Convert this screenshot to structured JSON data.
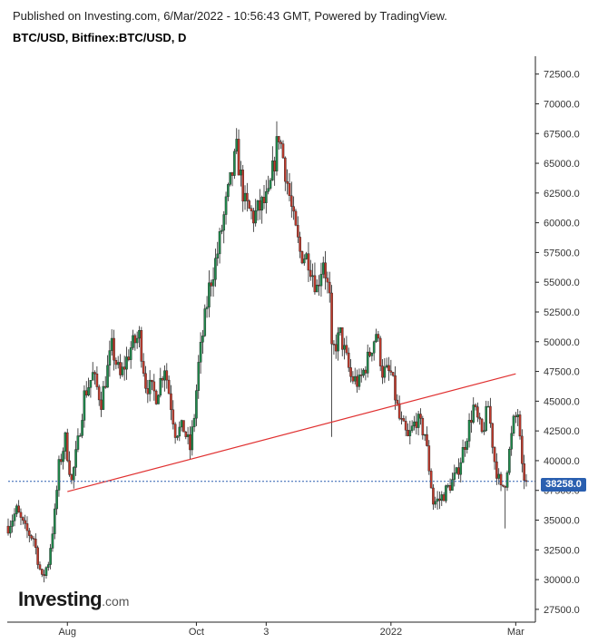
{
  "header": {
    "published": "Published on Investing.com, 6/Mar/2022 - 10:56:43 GMT, Powered by TradingView.",
    "symbol": "BTC/USD, Bitfinex:BTC/USD, D"
  },
  "logo": {
    "main": "Investing",
    "suffix": ".com"
  },
  "last_price_label": "38258.0",
  "colors": {
    "up": "#1f8a4c",
    "down": "#c0392b",
    "trendline": "#e03030",
    "last_price": "#2a5fb0"
  },
  "chart_data": {
    "type": "candlestick",
    "symbol": "BTC/USD",
    "exchange": "Bitfinex",
    "interval": "D",
    "ylim": [
      26500,
      74000
    ],
    "y_ticks": [
      27500,
      30000,
      32500,
      35000,
      37500,
      40000,
      42500,
      45000,
      47500,
      50000,
      52500,
      55000,
      57500,
      60000,
      62500,
      65000,
      67500,
      70000,
      72500
    ],
    "y_tick_labels": [
      "27500.0",
      "30000.0",
      "32500.0",
      "35000.0",
      "37500.0",
      "40000.0",
      "42500.0",
      "45000.0",
      "47500.0",
      "50000.0",
      "52500.0",
      "55000.0",
      "57500.0",
      "60000.0",
      "62500.0",
      "65000.0",
      "67500.0",
      "70000.0",
      "72500.0"
    ],
    "x_ticks": [
      {
        "label": "Aug",
        "date": "2021-08-01"
      },
      {
        "label": "Oct",
        "date": "2021-10-01"
      },
      {
        "label": "3",
        "date": "2021-11-03"
      },
      {
        "label": "2022",
        "date": "2022-01-01"
      },
      {
        "label": "Mar",
        "date": "2022-03-01"
      }
    ],
    "date_range": [
      "2021-07-04",
      "2022-03-06"
    ],
    "last_price": 38258.0,
    "trendline": {
      "from": {
        "date": "2021-08-01",
        "price": 37400
      },
      "to": {
        "date": "2022-03-01",
        "price": 47300
      }
    },
    "keypoints": [
      [
        "2021-07-04",
        34500
      ],
      [
        "2021-07-08",
        35800
      ],
      [
        "2021-07-12",
        34200
      ],
      [
        "2021-07-16",
        33500
      ],
      [
        "2021-07-20",
        30000
      ],
      [
        "2021-07-23",
        31500
      ],
      [
        "2021-07-26",
        35500
      ],
      [
        "2021-07-28",
        39500
      ],
      [
        "2021-07-31",
        41800
      ],
      [
        "2021-08-03",
        38200
      ],
      [
        "2021-08-06",
        41500
      ],
      [
        "2021-08-09",
        45500
      ],
      [
        "2021-08-13",
        47200
      ],
      [
        "2021-08-17",
        45000
      ],
      [
        "2021-08-22",
        49500
      ],
      [
        "2021-08-26",
        47000
      ],
      [
        "2021-08-31",
        49500
      ],
      [
        "2021-09-04",
        50500
      ],
      [
        "2021-09-07",
        46500
      ],
      [
        "2021-09-12",
        45500
      ],
      [
        "2021-09-16",
        48000
      ],
      [
        "2021-09-21",
        42500
      ],
      [
        "2021-09-25",
        42700
      ],
      [
        "2021-09-28",
        41000
      ],
      [
        "2021-09-30",
        43800
      ],
      [
        "2021-10-02",
        48000
      ],
      [
        "2021-10-07",
        54500
      ],
      [
        "2021-10-11",
        57500
      ],
      [
        "2021-10-15",
        61500
      ],
      [
        "2021-10-20",
        66000
      ],
      [
        "2021-10-24",
        61500
      ],
      [
        "2021-10-28",
        60500
      ],
      [
        "2021-11-01",
        61500
      ],
      [
        "2021-11-04",
        62000
      ],
      [
        "2021-11-09",
        67500
      ],
      [
        "2021-11-12",
        64500
      ],
      [
        "2021-11-16",
        60000
      ],
      [
        "2021-11-19",
        57500
      ],
      [
        "2021-11-23",
        57000
      ],
      [
        "2021-11-27",
        54500
      ],
      [
        "2021-11-30",
        57000
      ],
      [
        "2021-12-03",
        53500
      ],
      [
        "2021-12-04",
        49000
      ],
      [
        "2021-12-08",
        50600
      ],
      [
        "2021-12-13",
        47000
      ],
      [
        "2021-12-17",
        46500
      ],
      [
        "2021-12-21",
        48500
      ],
      [
        "2021-12-25",
        50800
      ],
      [
        "2021-12-28",
        47500
      ],
      [
        "2022-01-01",
        47300
      ],
      [
        "2022-01-05",
        43500
      ],
      [
        "2022-01-09",
        41800
      ],
      [
        "2022-01-13",
        43500
      ],
      [
        "2022-01-17",
        42300
      ],
      [
        "2022-01-21",
        36500
      ],
      [
        "2022-01-24",
        36700
      ],
      [
        "2022-01-28",
        37700
      ],
      [
        "2022-02-01",
        38800
      ],
      [
        "2022-02-05",
        41500
      ],
      [
        "2022-02-09",
        44500
      ],
      [
        "2022-02-13",
        42200
      ],
      [
        "2022-02-16",
        44600
      ],
      [
        "2022-02-19",
        40000
      ],
      [
        "2022-02-22",
        37500
      ],
      [
        "2022-02-24",
        38300
      ],
      [
        "2022-02-28",
        43200
      ],
      [
        "2022-03-02",
        44000
      ],
      [
        "2022-03-04",
        39100
      ],
      [
        "2022-03-06",
        38258
      ]
    ],
    "spikes": [
      {
        "date": "2021-12-04",
        "low": 42000
      },
      {
        "date": "2022-02-24",
        "low": 34300
      }
    ]
  }
}
